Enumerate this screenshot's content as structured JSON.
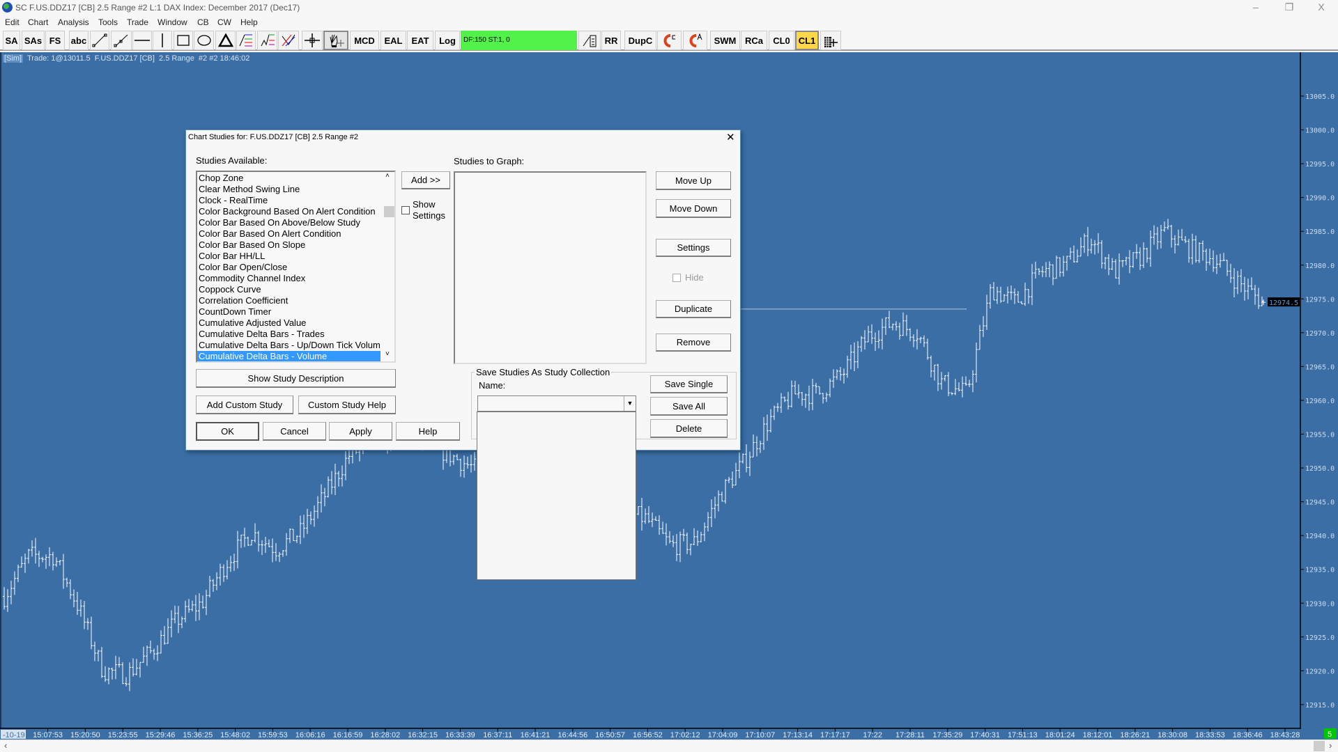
{
  "window": {
    "title": "SC F.US.DDZ17 [CB]  2.5 Range  #2  L:1  DAX Index: December 2017 (Dec17)",
    "minimize": "–",
    "restore": "❐",
    "close": "X"
  },
  "menu": [
    "Edit",
    "Chart",
    "Analysis",
    "Tools",
    "Trade",
    "Window",
    "CB",
    "CW",
    "Help"
  ],
  "toolbar": {
    "buttons": [
      {
        "label": "SA",
        "icon": ""
      },
      {
        "label": "SAs",
        "icon": ""
      },
      {
        "label": "FS",
        "icon": ""
      },
      {
        "label": "abc",
        "icon": ""
      },
      {
        "label": "",
        "icon": "line-tool-icon"
      },
      {
        "label": "",
        "icon": "ray-tool-icon"
      },
      {
        "label": "",
        "icon": "horizontal-line-icon"
      },
      {
        "label": "",
        "icon": "vertical-line-icon"
      },
      {
        "label": "",
        "icon": "rectangle-icon"
      },
      {
        "label": "",
        "icon": "ellipse-icon"
      },
      {
        "label": "",
        "icon": "triangle-icon"
      },
      {
        "label": "",
        "icon": "fib-retracement-icon"
      },
      {
        "label": "",
        "icon": "fib-extension-icon"
      },
      {
        "label": "",
        "icon": "fan-icon"
      },
      {
        "label": "",
        "icon": "crosshair-icon"
      },
      {
        "label": "",
        "icon": "hand-pan-icon"
      },
      {
        "label": "MCD",
        "icon": ""
      },
      {
        "label": "EAL",
        "icon": ""
      },
      {
        "label": "EAT",
        "icon": ""
      },
      {
        "label": "Log",
        "icon": ""
      },
      {
        "label": "",
        "icon": "line-calc-icon"
      },
      {
        "label": "RR",
        "icon": ""
      },
      {
        "label": "DupC",
        "icon": ""
      },
      {
        "label": "C",
        "icon": "magnet-c-icon"
      },
      {
        "label": "A",
        "icon": "magnet-a-icon"
      },
      {
        "label": "SWM",
        "icon": ""
      },
      {
        "label": "RCa",
        "icon": ""
      },
      {
        "label": "CL0",
        "icon": ""
      },
      {
        "label": "CL1",
        "icon": ""
      },
      {
        "label": "",
        "icon": "tpo-grid-icon"
      }
    ],
    "df_status": "DF:150  ST:1, 0",
    "df_color": "#52f24b",
    "cl1_color": "#ffd84a"
  },
  "chart": {
    "status_sim": "[Sim]",
    "status_text": "  Trade: 1@13011.5  F.US.DDZ17 [CB]  2.5 Range  #2 #2 18:46:02",
    "background": "#3a6ea5",
    "bar_color": "#ffffff",
    "last_price_label": "12974.5",
    "bottom_right_badge": "5",
    "first_date_label": "-10-19"
  },
  "chart_data": {
    "type": "ohlc",
    "price_ticks": [
      "13005.0",
      "13000.0",
      "12995.0",
      "12990.0",
      "12985.0",
      "12980.0",
      "12975.0",
      "12970.0",
      "12965.0",
      "12960.0",
      "12955.0",
      "12950.0",
      "12945.0",
      "12940.0",
      "12935.0",
      "12930.0",
      "12925.0",
      "12920.0",
      "12915.0"
    ],
    "ylim": [
      12913,
      13013
    ],
    "time_labels": [
      "15:07:53",
      "15:20:50",
      "15:23:55",
      "15:29:46",
      "15:36:25",
      "15:48:02",
      "15:59:53",
      "16:06:16",
      "16:16:59",
      "16:28:02",
      "16:32:15",
      "16:33:39",
      "16:37:11",
      "16:41:21",
      "16:44:56",
      "16:50:57",
      "16:56:52",
      "17:02:12",
      "17:04:09",
      "17:10:07",
      "17:13:14",
      "17:17:17",
      "17:22",
      "17:28:11",
      "17:35:29",
      "17:40:31",
      "17:51:13",
      "18:01:24",
      "18:12:01",
      "18:26:21",
      "18:30:08",
      "18:33:53",
      "18:36:46",
      "18:43:28"
    ],
    "approx_price_path": [
      12931,
      12937,
      12937,
      12929.5,
      12920,
      12919.5,
      12923,
      12927.5,
      12930,
      12936,
      12940.5,
      12938,
      12940.5,
      12946,
      12952,
      12954,
      12955,
      12954,
      12952,
      12950,
      12949,
      12948,
      12947,
      12946,
      12945,
      12943.5,
      12942.5,
      12938.5,
      12939,
      12946,
      12951,
      12957,
      12961,
      12961,
      12964,
      12969.5,
      12971.5,
      12970,
      12962.5,
      12961,
      12976.5,
      12974.5,
      12979,
      12980,
      12984,
      12979,
      12981,
      12985,
      12982.5,
      12981,
      12977.5,
      12974.5
    ],
    "last_price": 12974.5,
    "horizontal_line_price": 12973.5
  },
  "dialog": {
    "title": "Chart Studies for: F.US.DDZ17 [CB]  2.5 Range  #2",
    "studies_available_label": "Studies Available:",
    "studies_available": [
      "Chop Zone",
      "Clear Method Swing Line",
      "Clock - RealTime",
      "Color Background Based On Alert Condition",
      "Color Bar Based On Above/Below Study",
      "Color Bar Based On Alert Condition",
      "Color Bar Based On Slope",
      "Color Bar HH/LL",
      "Color Bar Open/Close",
      "Commodity Channel Index",
      "Coppock Curve",
      "Correlation Coefficient",
      "CountDown Timer",
      "Cumulative Adjusted Value",
      "Cumulative Delta Bars - Trades",
      "Cumulative Delta Bars - Up/Down Tick Volume",
      "Cumulative Delta Bars - Volume"
    ],
    "selected_study": "Cumulative Delta Bars - Volume",
    "add_button": "Add >>",
    "show_settings": "Show\nSettings",
    "show_settings_line1": "Show",
    "show_settings_line2": "Settings",
    "studies_to_graph_label": "Studies to Graph:",
    "move_up": "Move Up",
    "move_down": "Move Down",
    "settings": "Settings",
    "hide": "Hide",
    "duplicate": "Duplicate",
    "remove": "Remove",
    "show_study_description": "Show Study Description",
    "add_custom_study": "Add Custom Study",
    "custom_study_help": "Custom Study Help",
    "ok": "OK",
    "cancel": "Cancel",
    "apply": "Apply",
    "help": "Help",
    "collection_group": "Save Studies As Study Collection",
    "name_label": "Name:",
    "name_value": "",
    "save_single": "Save Single",
    "save_all": "Save All",
    "delete": "Delete",
    "close": "✕"
  }
}
